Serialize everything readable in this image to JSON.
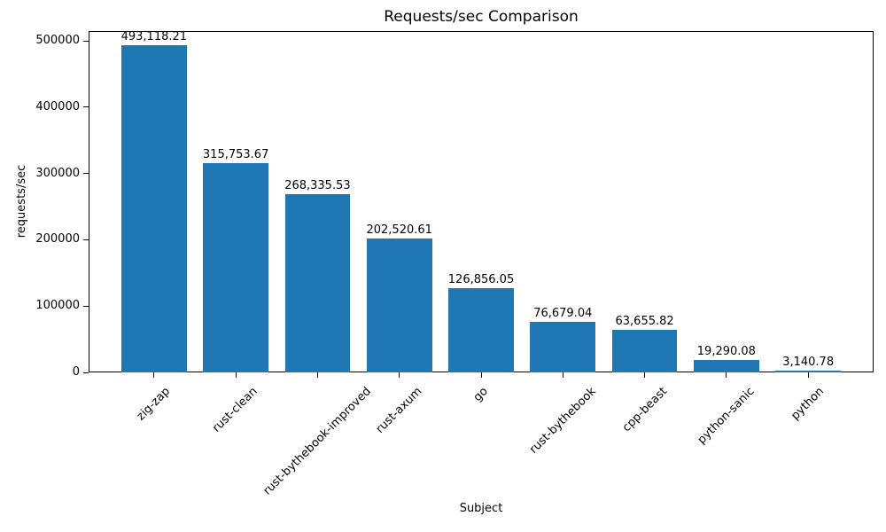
{
  "chart_data": {
    "type": "bar",
    "title": "Requests/sec Comparison",
    "xlabel": "Subject",
    "ylabel": "requests/sec",
    "categories": [
      "zig-zap",
      "rust-clean",
      "rust-bythebook-improved",
      "rust-axum",
      "go",
      "rust-bythebook",
      "cpp-beast",
      "python-sanic",
      "python"
    ],
    "values": [
      493118.21,
      315753.67,
      268335.53,
      202520.61,
      126856.05,
      76679.04,
      63655.82,
      19290.08,
      3140.78
    ],
    "bar_labels": [
      "493,118.21",
      "315,753.67",
      "268,335.53",
      "202,520.61",
      "126,856.05",
      "76,679.04",
      "63,655.82",
      "19,290.08",
      "3,140.78"
    ],
    "y_ticks": [
      {
        "value": 0,
        "label": "0"
      },
      {
        "value": 100000,
        "label": "100000"
      },
      {
        "value": 200000,
        "label": "200000"
      },
      {
        "value": 300000,
        "label": "300000"
      },
      {
        "value": 400000,
        "label": "400000"
      },
      {
        "value": 500000,
        "label": "500000"
      }
    ],
    "ylim": [
      0,
      515000
    ],
    "xlim": [
      -0.8,
      8.8
    ],
    "bar_width": 0.8,
    "bar_color": "#1f77b4",
    "axis_color": "#000000",
    "text_color": "#000000",
    "grid": false,
    "legend": "none"
  }
}
